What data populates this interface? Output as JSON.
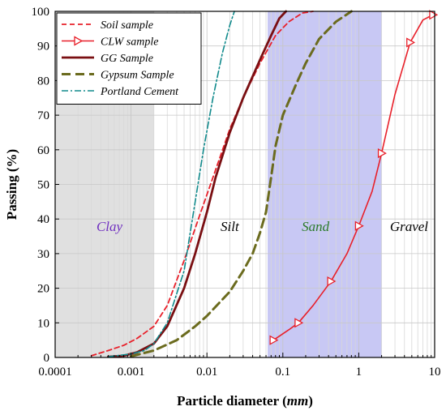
{
  "chart_data": {
    "type": "line",
    "xlabel": "Particle diameter",
    "xunit": "mm",
    "ylabel": "Passing (%)",
    "xscale": "log",
    "xlim": [
      0.0001,
      10
    ],
    "ylim": [
      0,
      100
    ],
    "x_ticks": [
      "0.0001",
      "0.001",
      "0.01",
      "0.1",
      "1",
      "10"
    ],
    "y_ticks": [
      "0",
      "10",
      "20",
      "30",
      "40",
      "50",
      "60",
      "70",
      "80",
      "90",
      "100"
    ],
    "grid": true,
    "legend_position": "top-left",
    "regions": [
      {
        "label": "Clay",
        "x_from": 0.0001,
        "x_to": 0.002,
        "fill": "#e0e0e0",
        "label_color": "#7030c0"
      },
      {
        "label": "Silt",
        "x_from": 0.002,
        "x_to": 0.063,
        "fill": "",
        "label_color": "#000000"
      },
      {
        "label": "Sand",
        "x_from": 0.063,
        "x_to": 2,
        "fill": "#c8c8f4",
        "label_color": "#2a7a2a"
      },
      {
        "label": "Gravel",
        "x_from": 2,
        "x_to": 10,
        "fill": "",
        "label_color": "#000000"
      }
    ],
    "series": [
      {
        "name": "Soil sample",
        "color": "#e8202a",
        "style": "dashed",
        "marker": "none",
        "points": [
          [
            0.0003,
            0.5
          ],
          [
            0.0005,
            2
          ],
          [
            0.0008,
            3.5
          ],
          [
            0.0012,
            5.5
          ],
          [
            0.002,
            9
          ],
          [
            0.003,
            15
          ],
          [
            0.005,
            28
          ],
          [
            0.008,
            41
          ],
          [
            0.012,
            52
          ],
          [
            0.02,
            66
          ],
          [
            0.03,
            75
          ],
          [
            0.05,
            85
          ],
          [
            0.08,
            93
          ],
          [
            0.12,
            97
          ],
          [
            0.18,
            99.5
          ],
          [
            0.25,
            100
          ]
        ]
      },
      {
        "name": "CLW sample",
        "color": "#e8202a",
        "style": "solid",
        "marker": "triangle-right",
        "points": [
          [
            0.075,
            5
          ],
          [
            0.12,
            8
          ],
          [
            0.16,
            10
          ],
          [
            0.25,
            15
          ],
          [
            0.43,
            22
          ],
          [
            0.7,
            30
          ],
          [
            1.0,
            38
          ],
          [
            1.5,
            48
          ],
          [
            2.0,
            59
          ],
          [
            3.0,
            76
          ],
          [
            4.75,
            91
          ],
          [
            7.0,
            97.5
          ],
          [
            9.5,
            99
          ]
        ]
      },
      {
        "name": "GG Sample",
        "color": "#7a0f12",
        "style": "solid-thick",
        "marker": "none",
        "points": [
          [
            0.0005,
            0.2
          ],
          [
            0.0008,
            0.5
          ],
          [
            0.0012,
            1.5
          ],
          [
            0.002,
            4
          ],
          [
            0.003,
            9
          ],
          [
            0.005,
            20
          ],
          [
            0.007,
            30
          ],
          [
            0.01,
            42
          ],
          [
            0.013,
            52
          ],
          [
            0.02,
            65
          ],
          [
            0.03,
            75
          ],
          [
            0.05,
            86
          ],
          [
            0.07,
            93
          ],
          [
            0.09,
            98
          ],
          [
            0.11,
            100
          ]
        ]
      },
      {
        "name": "Gypsum Sample",
        "color": "#6b6b1e",
        "style": "dashed-thick",
        "marker": "none",
        "points": [
          [
            0.001,
            0.3
          ],
          [
            0.002,
            2
          ],
          [
            0.004,
            5
          ],
          [
            0.007,
            9
          ],
          [
            0.01,
            12
          ],
          [
            0.02,
            19
          ],
          [
            0.03,
            25
          ],
          [
            0.04,
            30
          ],
          [
            0.05,
            36
          ],
          [
            0.06,
            42
          ],
          [
            0.07,
            52
          ],
          [
            0.08,
            61
          ],
          [
            0.1,
            70
          ],
          [
            0.15,
            79
          ],
          [
            0.2,
            85
          ],
          [
            0.3,
            92
          ],
          [
            0.5,
            97
          ],
          [
            0.8,
            100
          ]
        ]
      },
      {
        "name": "Portland Cement",
        "color": "#108a8c",
        "style": "dashdot",
        "marker": "none",
        "points": [
          [
            0.0005,
            0.2
          ],
          [
            0.001,
            1
          ],
          [
            0.0015,
            2
          ],
          [
            0.002,
            4
          ],
          [
            0.003,
            10
          ],
          [
            0.005,
            25
          ],
          [
            0.007,
            45
          ],
          [
            0.009,
            60
          ],
          [
            0.012,
            75
          ],
          [
            0.016,
            88
          ],
          [
            0.02,
            96
          ],
          [
            0.023,
            100
          ]
        ]
      }
    ]
  }
}
